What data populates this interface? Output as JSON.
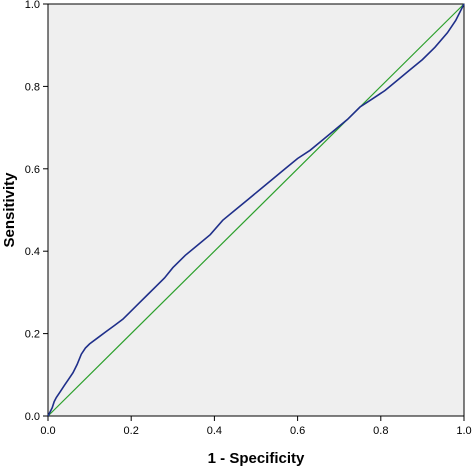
{
  "chart_data": {
    "type": "line",
    "xlabel": "1 - Specificity",
    "ylabel": "Sensitivity",
    "xlim": [
      0.0,
      1.0
    ],
    "ylim": [
      0.0,
      1.0
    ],
    "x_ticks": [
      "0.0",
      "0.2",
      "0.4",
      "0.6",
      "0.8",
      "1.0"
    ],
    "y_ticks": [
      "0.0",
      "0.2",
      "0.4",
      "0.6",
      "0.8",
      "1.0"
    ],
    "grid": false,
    "legend": "none",
    "series": [
      {
        "color": "#1f2f8a",
        "x": [
          0.0,
          0.005,
          0.01,
          0.015,
          0.02,
          0.03,
          0.04,
          0.05,
          0.06,
          0.07,
          0.08,
          0.09,
          0.1,
          0.12,
          0.14,
          0.16,
          0.18,
          0.2,
          0.22,
          0.24,
          0.26,
          0.28,
          0.3,
          0.33,
          0.36,
          0.39,
          0.42,
          0.45,
          0.48,
          0.51,
          0.54,
          0.57,
          0.6,
          0.63,
          0.66,
          0.69,
          0.72,
          0.75,
          0.78,
          0.81,
          0.84,
          0.87,
          0.9,
          0.93,
          0.96,
          0.98,
          1.0
        ],
        "y": [
          0.0,
          0.01,
          0.02,
          0.035,
          0.045,
          0.06,
          0.075,
          0.09,
          0.105,
          0.125,
          0.15,
          0.165,
          0.175,
          0.19,
          0.205,
          0.22,
          0.235,
          0.255,
          0.275,
          0.295,
          0.315,
          0.335,
          0.36,
          0.39,
          0.415,
          0.44,
          0.475,
          0.5,
          0.525,
          0.55,
          0.575,
          0.6,
          0.625,
          0.645,
          0.67,
          0.695,
          0.72,
          0.75,
          0.77,
          0.79,
          0.815,
          0.84,
          0.865,
          0.895,
          0.93,
          0.96,
          1.0
        ]
      },
      {
        "color": "#2ca02c",
        "x": [
          0.0,
          1.0
        ],
        "y": [
          0.0,
          1.0
        ]
      }
    ]
  }
}
